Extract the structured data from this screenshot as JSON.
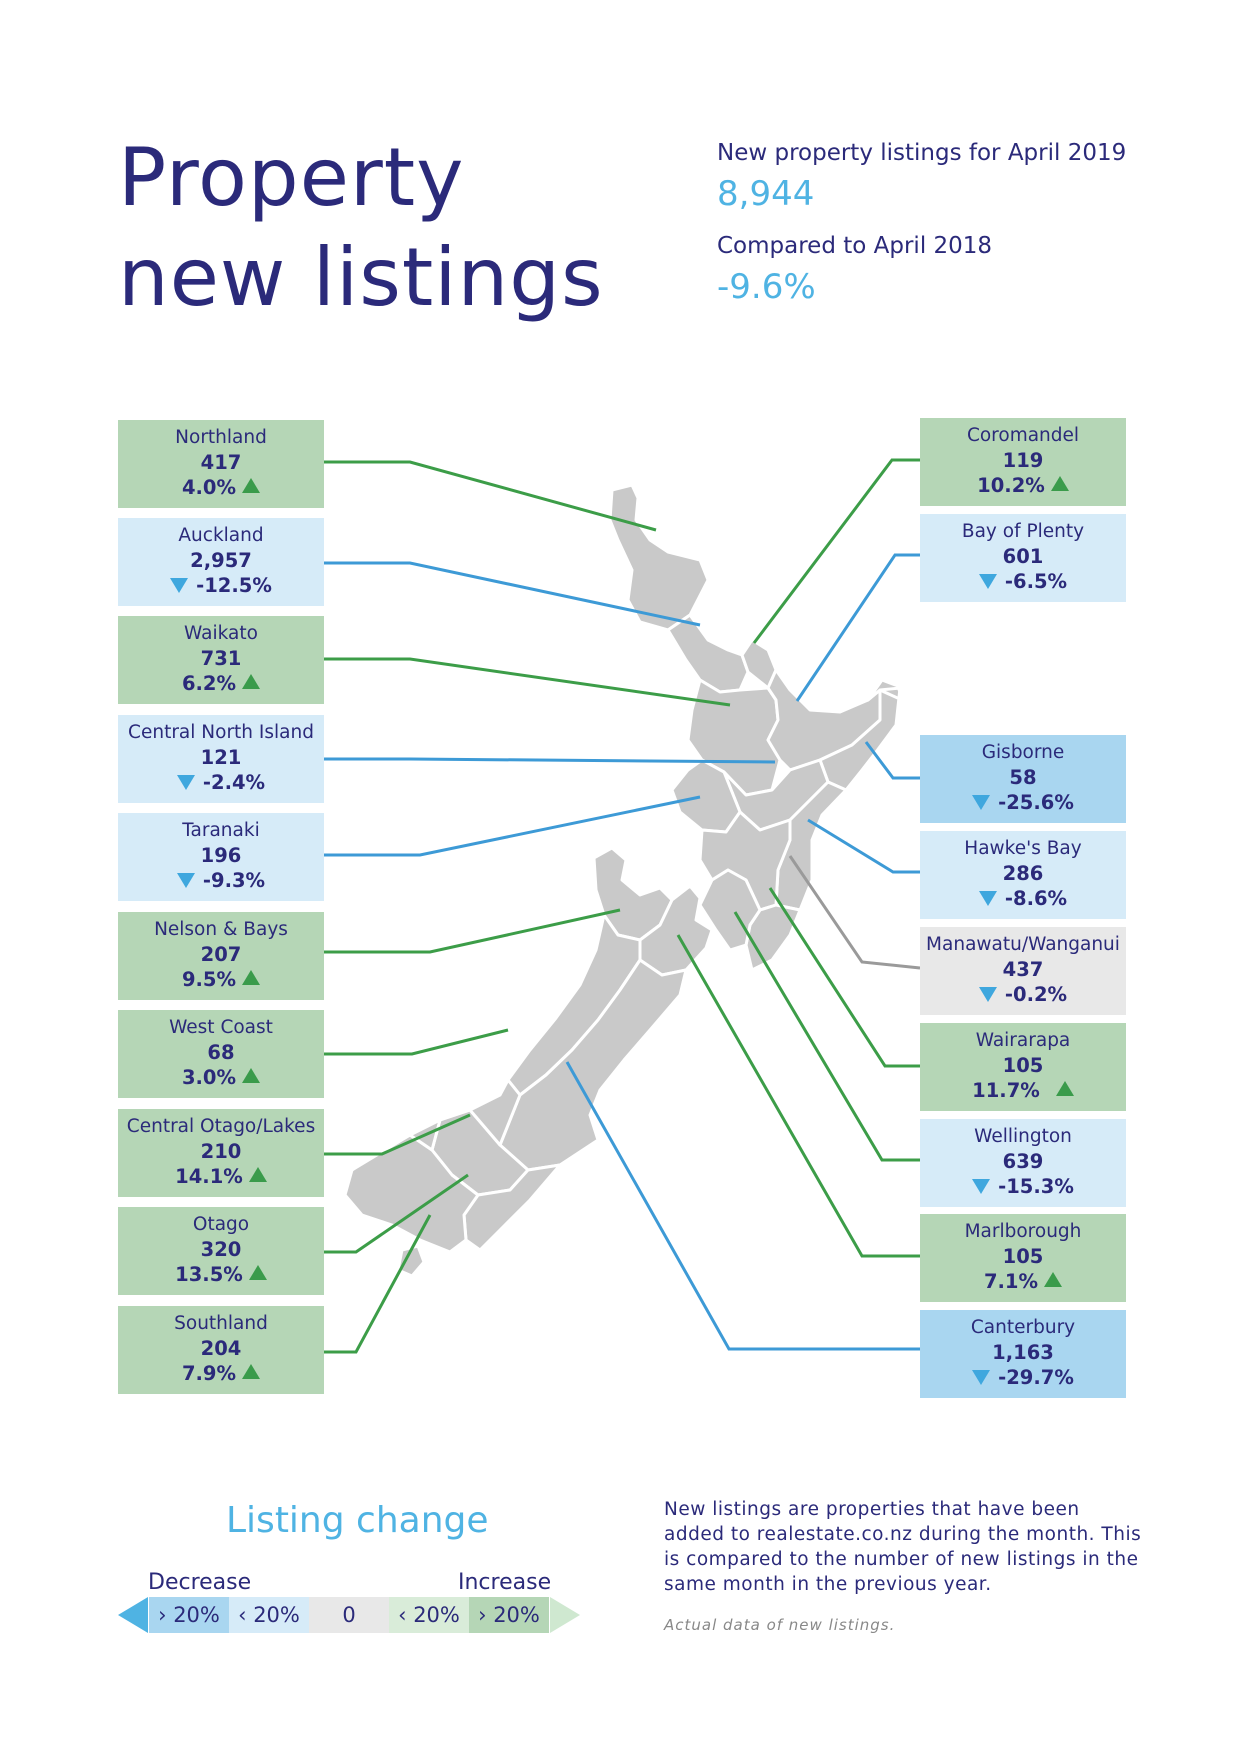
{
  "title_line1": "Property",
  "title_line2": "new listings",
  "header": {
    "listings_label": "New property listings for April 2019",
    "listings_value": "8,944",
    "compare_label": "Compared to April 2018",
    "compare_value": "-9.6%"
  },
  "colors": {
    "strong_increase": "#b5d6b6",
    "strong_decrease": "#a9d6f0",
    "mild_decrease": "#d6ebf8",
    "neutral": "#e8e8e8",
    "mild_increase": "#d9ecd9",
    "line_green": "#3c9d48",
    "line_blue": "#3d9ad6",
    "line_grey": "#9a9a9a",
    "map_fill": "#c9c9c9"
  },
  "regions_left": [
    {
      "name": "Northland",
      "value": "417",
      "change": "4.0%",
      "direction": "up"
    },
    {
      "name": "Auckland",
      "value": "2,957",
      "change": "-12.5%",
      "direction": "down"
    },
    {
      "name": "Waikato",
      "value": "731",
      "change": "6.2%",
      "direction": "up"
    },
    {
      "name": "Central North Island",
      "value": "121",
      "change": "-2.4%",
      "direction": "down"
    },
    {
      "name": "Taranaki",
      "value": "196",
      "change": "-9.3%",
      "direction": "down"
    },
    {
      "name": "Nelson & Bays",
      "value": "207",
      "change": "9.5%",
      "direction": "up"
    },
    {
      "name": "West Coast",
      "value": "68",
      "change": "3.0%",
      "direction": "up"
    },
    {
      "name": "Central Otago/Lakes",
      "value": "210",
      "change": "14.1%",
      "direction": "up"
    },
    {
      "name": "Otago",
      "value": "320",
      "change": "13.5%",
      "direction": "up"
    },
    {
      "name": "Southland",
      "value": "204",
      "change": "7.9%",
      "direction": "up"
    }
  ],
  "regions_right": [
    {
      "name": "Coromandel",
      "value": "119",
      "change": "10.2%",
      "direction": "up"
    },
    {
      "name": "Bay of Plenty",
      "value": "601",
      "change": "-6.5%",
      "direction": "down"
    },
    {
      "name": "Gisborne",
      "value": "58",
      "change": "-25.6%",
      "direction": "down"
    },
    {
      "name": "Hawke's Bay",
      "value": "286",
      "change": "-8.6%",
      "direction": "down"
    },
    {
      "name": "Manawatu/Wanganui",
      "value": "437",
      "change": "-0.2%",
      "direction": "down"
    },
    {
      "name": "Wairarapa",
      "value": "105",
      "change": "11.7%",
      "direction": "up"
    },
    {
      "name": "Wellington",
      "value": "639",
      "change": "-15.3%",
      "direction": "down"
    },
    {
      "name": "Marlborough",
      "value": "105",
      "change": "7.1%",
      "direction": "up"
    },
    {
      "name": "Canterbury",
      "value": "1,163",
      "change": "-29.7%",
      "direction": "down"
    }
  ],
  "legend": {
    "title": "Listing change",
    "decrease_label": "Decrease",
    "increase_label": "Increase",
    "segments": [
      "› 20%",
      "‹ 20%",
      "0",
      "‹ 20%",
      "› 20%"
    ]
  },
  "description": "New listings are properties that have been added to realestate.co.nz during the month. This is compared to the number of new listings in the same month in the previous year.",
  "footnote": "Actual data of new listings."
}
